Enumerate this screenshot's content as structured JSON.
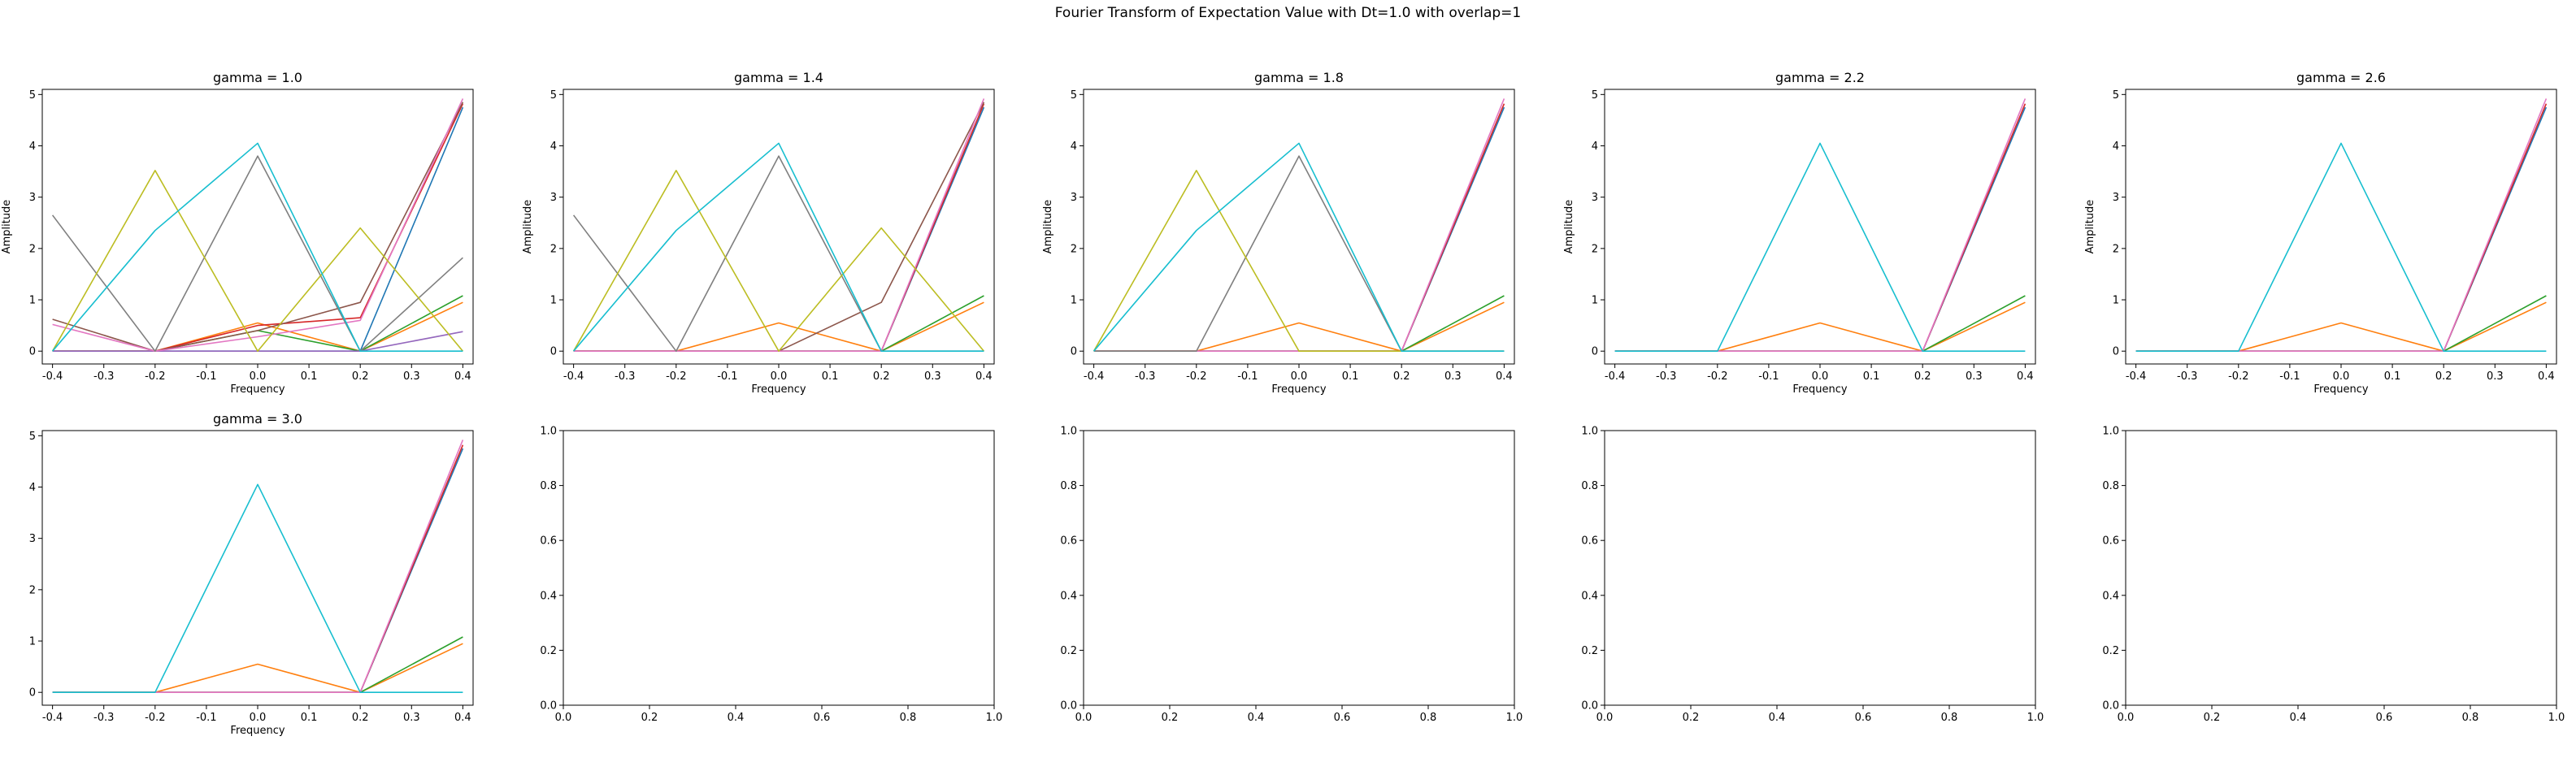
{
  "figure": {
    "title": "Fourier Transform of Expectation Value with Dt=1.0 with overlap=1"
  },
  "series_colors": [
    "#1f77b4",
    "#ff7f0e",
    "#2ca02c",
    "#d62728",
    "#9467bd",
    "#8c564b",
    "#e377c2",
    "#7f7f7f",
    "#bcbd22",
    "#17becf"
  ],
  "chart_data": [
    {
      "type": "line",
      "title": "gamma = 1.0",
      "xlabel": "Frequency",
      "ylabel": "Amplitude",
      "x": [
        -0.4,
        -0.2,
        0.0,
        0.2,
        0.4
      ],
      "xlim": [
        -0.42,
        0.42
      ],
      "ylim": [
        -0.25,
        5.1
      ],
      "xticks": [
        "-0.4",
        "-0.3",
        "-0.2",
        "-0.1",
        "0.0",
        "0.1",
        "0.2",
        "0.3",
        "0.4"
      ],
      "yticks": [
        "0",
        "1",
        "2",
        "3",
        "4",
        "5"
      ],
      "series": [
        {
          "color": "#1f77b4",
          "values": [
            0.0,
            0.0,
            0.0,
            0.0,
            4.75
          ]
        },
        {
          "color": "#ff7f0e",
          "values": [
            0.0,
            0.0,
            0.55,
            0.0,
            0.95
          ]
        },
        {
          "color": "#2ca02c",
          "values": [
            0.0,
            0.0,
            0.4,
            0.0,
            1.08
          ]
        },
        {
          "color": "#d62728",
          "values": [
            0.0,
            0.0,
            0.5,
            0.65,
            4.82
          ]
        },
        {
          "color": "#9467bd",
          "values": [
            0.0,
            0.0,
            0.0,
            0.0,
            0.38
          ]
        },
        {
          "color": "#8c564b",
          "values": [
            0.62,
            0.0,
            0.4,
            0.95,
            4.85
          ]
        },
        {
          "color": "#e377c2",
          "values": [
            0.52,
            0.0,
            0.28,
            0.6,
            4.92
          ]
        },
        {
          "color": "#7f7f7f",
          "values": [
            2.65,
            0.0,
            3.8,
            0.0,
            1.82
          ]
        },
        {
          "color": "#bcbd22",
          "values": [
            0.0,
            3.52,
            0.0,
            2.4,
            0.0
          ]
        },
        {
          "color": "#17becf",
          "values": [
            0.0,
            2.35,
            4.05,
            0.0,
            0.0
          ]
        }
      ]
    },
    {
      "type": "line",
      "title": "gamma = 1.4",
      "xlabel": "Frequency",
      "ylabel": "Amplitude",
      "x": [
        -0.4,
        -0.2,
        0.0,
        0.2,
        0.4
      ],
      "xlim": [
        -0.42,
        0.42
      ],
      "ylim": [
        -0.25,
        5.1
      ],
      "xticks": [
        "-0.4",
        "-0.3",
        "-0.2",
        "-0.1",
        "0.0",
        "0.1",
        "0.2",
        "0.3",
        "0.4"
      ],
      "yticks": [
        "0",
        "1",
        "2",
        "3",
        "4",
        "5"
      ],
      "series": [
        {
          "color": "#1f77b4",
          "values": [
            0.0,
            0.0,
            0.0,
            0.0,
            4.75
          ]
        },
        {
          "color": "#ff7f0e",
          "values": [
            0.0,
            0.0,
            0.55,
            0.0,
            0.95
          ]
        },
        {
          "color": "#2ca02c",
          "values": [
            0.0,
            0.0,
            0.0,
            0.0,
            1.08
          ]
        },
        {
          "color": "#d62728",
          "values": [
            0.0,
            0.0,
            0.0,
            0.0,
            4.82
          ]
        },
        {
          "color": "#8c564b",
          "values": [
            0.0,
            0.0,
            0.0,
            0.95,
            4.85
          ]
        },
        {
          "color": "#e377c2",
          "values": [
            0.0,
            0.0,
            0.0,
            0.0,
            4.92
          ]
        },
        {
          "color": "#7f7f7f",
          "values": [
            2.65,
            0.0,
            3.8,
            0.0,
            0.0
          ]
        },
        {
          "color": "#bcbd22",
          "values": [
            0.0,
            3.52,
            0.0,
            2.4,
            0.0
          ]
        },
        {
          "color": "#17becf",
          "values": [
            0.0,
            2.35,
            4.05,
            0.0,
            0.0
          ]
        }
      ]
    },
    {
      "type": "line",
      "title": "gamma = 1.8",
      "xlabel": "Frequency",
      "ylabel": "Amplitude",
      "x": [
        -0.4,
        -0.2,
        0.0,
        0.2,
        0.4
      ],
      "xlim": [
        -0.42,
        0.42
      ],
      "ylim": [
        -0.25,
        5.1
      ],
      "xticks": [
        "-0.4",
        "-0.3",
        "-0.2",
        "-0.1",
        "0.0",
        "0.1",
        "0.2",
        "0.3",
        "0.4"
      ],
      "yticks": [
        "0",
        "1",
        "2",
        "3",
        "4",
        "5"
      ],
      "series": [
        {
          "color": "#1f77b4",
          "values": [
            0.0,
            0.0,
            0.0,
            0.0,
            4.75
          ]
        },
        {
          "color": "#ff7f0e",
          "values": [
            0.0,
            0.0,
            0.55,
            0.0,
            0.95
          ]
        },
        {
          "color": "#2ca02c",
          "values": [
            0.0,
            0.0,
            0.0,
            0.0,
            1.08
          ]
        },
        {
          "color": "#d62728",
          "values": [
            0.0,
            0.0,
            0.0,
            0.0,
            4.82
          ]
        },
        {
          "color": "#e377c2",
          "values": [
            0.0,
            0.0,
            0.0,
            0.0,
            4.92
          ]
        },
        {
          "color": "#7f7f7f",
          "values": [
            0.0,
            0.0,
            3.8,
            0.0,
            0.0
          ]
        },
        {
          "color": "#bcbd22",
          "values": [
            0.0,
            3.52,
            0.0,
            0.0,
            0.0
          ]
        },
        {
          "color": "#17becf",
          "values": [
            0.0,
            2.35,
            4.05,
            0.0,
            0.0
          ]
        }
      ]
    },
    {
      "type": "line",
      "title": "gamma = 2.2",
      "xlabel": "Frequency",
      "ylabel": "Amplitude",
      "x": [
        -0.4,
        -0.2,
        0.0,
        0.2,
        0.4
      ],
      "xlim": [
        -0.42,
        0.42
      ],
      "ylim": [
        -0.25,
        5.1
      ],
      "xticks": [
        "-0.4",
        "-0.3",
        "-0.2",
        "-0.1",
        "0.0",
        "0.1",
        "0.2",
        "0.3",
        "0.4"
      ],
      "yticks": [
        "0",
        "1",
        "2",
        "3",
        "4",
        "5"
      ],
      "series": [
        {
          "color": "#1f77b4",
          "values": [
            0.0,
            0.0,
            0.0,
            0.0,
            4.75
          ]
        },
        {
          "color": "#ff7f0e",
          "values": [
            0.0,
            0.0,
            0.55,
            0.0,
            0.95
          ]
        },
        {
          "color": "#2ca02c",
          "values": [
            0.0,
            0.0,
            0.0,
            0.0,
            1.08
          ]
        },
        {
          "color": "#d62728",
          "values": [
            0.0,
            0.0,
            0.0,
            0.0,
            4.82
          ]
        },
        {
          "color": "#e377c2",
          "values": [
            0.0,
            0.0,
            0.0,
            0.0,
            4.92
          ]
        },
        {
          "color": "#17becf",
          "values": [
            0.0,
            0.0,
            4.05,
            0.0,
            0.0
          ]
        }
      ]
    },
    {
      "type": "line",
      "title": "gamma = 2.6",
      "xlabel": "Frequency",
      "ylabel": "Amplitude",
      "x": [
        -0.4,
        -0.2,
        0.0,
        0.2,
        0.4
      ],
      "xlim": [
        -0.42,
        0.42
      ],
      "ylim": [
        -0.25,
        5.1
      ],
      "xticks": [
        "-0.4",
        "-0.3",
        "-0.2",
        "-0.1",
        "0.0",
        "0.1",
        "0.2",
        "0.3",
        "0.4"
      ],
      "yticks": [
        "0",
        "1",
        "2",
        "3",
        "4",
        "5"
      ],
      "series": [
        {
          "color": "#1f77b4",
          "values": [
            0.0,
            0.0,
            0.0,
            0.0,
            4.75
          ]
        },
        {
          "color": "#ff7f0e",
          "values": [
            0.0,
            0.0,
            0.55,
            0.0,
            0.95
          ]
        },
        {
          "color": "#2ca02c",
          "values": [
            0.0,
            0.0,
            0.0,
            0.0,
            1.08
          ]
        },
        {
          "color": "#d62728",
          "values": [
            0.0,
            0.0,
            0.0,
            0.0,
            4.82
          ]
        },
        {
          "color": "#e377c2",
          "values": [
            0.0,
            0.0,
            0.0,
            0.0,
            4.92
          ]
        },
        {
          "color": "#17becf",
          "values": [
            0.0,
            0.0,
            4.05,
            0.0,
            0.0
          ]
        }
      ]
    },
    {
      "type": "line",
      "title": "gamma = 3.0",
      "xlabel": "Frequency",
      "ylabel": "",
      "x": [
        -0.4,
        -0.2,
        0.0,
        0.2,
        0.4
      ],
      "xlim": [
        -0.42,
        0.42
      ],
      "ylim": [
        -0.25,
        5.1
      ],
      "xticks": [
        "-0.4",
        "-0.3",
        "-0.2",
        "-0.1",
        "0.0",
        "0.1",
        "0.2",
        "0.3",
        "0.4"
      ],
      "yticks": [
        "0",
        "1",
        "2",
        "3",
        "4",
        "5"
      ],
      "series": [
        {
          "color": "#1f77b4",
          "values": [
            0.0,
            0.0,
            0.0,
            0.0,
            4.75
          ]
        },
        {
          "color": "#ff7f0e",
          "values": [
            0.0,
            0.0,
            0.55,
            0.0,
            0.95
          ]
        },
        {
          "color": "#2ca02c",
          "values": [
            0.0,
            0.0,
            0.0,
            0.0,
            1.08
          ]
        },
        {
          "color": "#d62728",
          "values": [
            0.0,
            0.0,
            0.0,
            0.0,
            4.82
          ]
        },
        {
          "color": "#e377c2",
          "values": [
            0.0,
            0.0,
            0.0,
            0.0,
            4.92
          ]
        },
        {
          "color": "#17becf",
          "values": [
            0.0,
            0.0,
            4.05,
            0.0,
            0.0
          ]
        }
      ]
    },
    {
      "type": "line",
      "title": "",
      "xlabel": "",
      "ylabel": "",
      "x": [],
      "xlim": [
        0,
        1
      ],
      "ylim": [
        0,
        1
      ],
      "xticks": [
        "0.0",
        "0.2",
        "0.4",
        "0.6",
        "0.8",
        "1.0"
      ],
      "yticks": [
        "0.0",
        "0.2",
        "0.4",
        "0.6",
        "0.8",
        "1.0"
      ],
      "series": []
    },
    {
      "type": "line",
      "title": "",
      "xlabel": "",
      "ylabel": "",
      "x": [],
      "xlim": [
        0,
        1
      ],
      "ylim": [
        0,
        1
      ],
      "xticks": [
        "0.0",
        "0.2",
        "0.4",
        "0.6",
        "0.8",
        "1.0"
      ],
      "yticks": [
        "0.0",
        "0.2",
        "0.4",
        "0.6",
        "0.8",
        "1.0"
      ],
      "series": []
    },
    {
      "type": "line",
      "title": "",
      "xlabel": "",
      "ylabel": "",
      "x": [],
      "xlim": [
        0,
        1
      ],
      "ylim": [
        0,
        1
      ],
      "xticks": [
        "0.0",
        "0.2",
        "0.4",
        "0.6",
        "0.8",
        "1.0"
      ],
      "yticks": [
        "0.0",
        "0.2",
        "0.4",
        "0.6",
        "0.8",
        "1.0"
      ],
      "series": []
    },
    {
      "type": "line",
      "title": "",
      "xlabel": "",
      "ylabel": "",
      "x": [],
      "xlim": [
        0,
        1
      ],
      "ylim": [
        0,
        1
      ],
      "xticks": [
        "0.0",
        "0.2",
        "0.4",
        "0.6",
        "0.8",
        "1.0"
      ],
      "yticks": [
        "0.0",
        "0.2",
        "0.4",
        "0.6",
        "0.8",
        "1.0"
      ],
      "series": []
    }
  ]
}
